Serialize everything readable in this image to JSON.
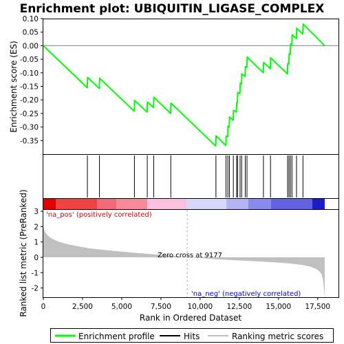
{
  "title": "Enrichment plot: UBIQUITIN_LIGASE_COMPLEX",
  "colors": {
    "profile": "#00ff00",
    "hits": "#000000",
    "metric_fill": "#c0c0c0",
    "pos_label": "#cc0000",
    "neg_label": "#0000cc",
    "zero_line": "#808080"
  },
  "legend": {
    "profile": "Enrichment profile",
    "hits": "Hits",
    "metric": "Ranking metric scores"
  },
  "annotations": {
    "pos": "'na_pos' (positively correlated)",
    "neg": "'na_neg' (negatively correlated)",
    "zero_cross": "Zero cross at 9177"
  },
  "chart_data": [
    {
      "type": "line",
      "name": "enrichment-profile",
      "ylabel": "Enrichment score (ES)",
      "ylim": [
        -0.4,
        0.1
      ],
      "yticks": [
        0.1,
        0.05,
        0.0,
        -0.05,
        -0.1,
        -0.15,
        -0.2,
        -0.25,
        -0.3,
        -0.35
      ],
      "ytick_labels": [
        "0.10",
        "0.05",
        "0.00",
        "-0.05",
        "-0.10",
        "-0.15",
        "-0.20",
        "-0.25",
        "-0.30",
        "-0.35"
      ],
      "xlim": [
        0,
        18000
      ],
      "grid": false,
      "x": [
        0,
        2800,
        2820,
        3570,
        3590,
        5800,
        5820,
        6620,
        6640,
        7030,
        7050,
        8120,
        8140,
        11000,
        11020,
        11640,
        11660,
        11760,
        11780,
        11860,
        11880,
        12110,
        12130,
        12320,
        12340,
        12380,
        12400,
        12540,
        12560,
        12640,
        12660,
        12870,
        12890,
        12980,
        13000,
        14030,
        14050,
        14480,
        14500,
        15570,
        15590,
        15660,
        15680,
        15750,
        15770,
        15850,
        15870,
        16140,
        16160,
        16550,
        16570,
        17950
      ],
      "y": [
        0.0,
        -0.155,
        -0.117,
        -0.158,
        -0.12,
        -0.242,
        -0.202,
        -0.245,
        -0.208,
        -0.228,
        -0.19,
        -0.25,
        -0.212,
        -0.37,
        -0.333,
        -0.368,
        -0.333,
        -0.336,
        -0.297,
        -0.301,
        -0.263,
        -0.275,
        -0.238,
        -0.245,
        -0.208,
        -0.21,
        -0.172,
        -0.177,
        -0.139,
        -0.142,
        -0.104,
        -0.113,
        -0.077,
        -0.08,
        -0.042,
        -0.1,
        -0.062,
        -0.085,
        -0.045,
        -0.104,
        -0.066,
        -0.068,
        -0.03,
        -0.032,
        0.006,
        0.002,
        0.04,
        0.027,
        0.064,
        0.043,
        0.08,
        0.0
      ]
    },
    {
      "type": "scatter",
      "name": "hits",
      "x": [
        2810,
        3580,
        5810,
        6630,
        7040,
        8130,
        11010,
        11650,
        11770,
        11870,
        12120,
        12330,
        12390,
        12550,
        12650,
        12880,
        12990,
        14040,
        14490,
        15580,
        15670,
        15760,
        15860,
        16150,
        16560
      ]
    },
    {
      "type": "area",
      "name": "ranking-metric",
      "xlabel": "Rank in Ordered Dataset",
      "ylabel": "Ranked list metric (PreRanked)",
      "ylim": [
        -2.7,
        3.0
      ],
      "yticks": [
        3,
        2,
        1,
        0,
        -1,
        -2
      ],
      "xlim": [
        0,
        18000
      ],
      "xticks": [
        0,
        2500,
        5000,
        7500,
        10000,
        12500,
        15000,
        17500
      ],
      "xtick_labels": [
        "0",
        "2,500",
        "5,000",
        "7,500",
        "10,000",
        "12,500",
        "15,000",
        "17,500"
      ],
      "zero_cross": 9177,
      "x": [
        0,
        50,
        150,
        300,
        500,
        800,
        1200,
        1700,
        2300,
        3000,
        4000,
        5000,
        6000,
        7000,
        8000,
        9177,
        10000,
        11000,
        12000,
        13000,
        14000,
        15000,
        15800,
        16500,
        17000,
        17400,
        17600,
        17750,
        17850,
        17950
      ],
      "y": [
        2.0,
        1.8,
        1.6,
        1.4,
        1.25,
        1.1,
        0.95,
        0.82,
        0.7,
        0.58,
        0.47,
        0.37,
        0.28,
        0.2,
        0.12,
        0.0,
        -0.06,
        -0.12,
        -0.18,
        -0.23,
        -0.28,
        -0.34,
        -0.41,
        -0.5,
        -0.6,
        -0.75,
        -0.9,
        -1.1,
        -1.5,
        -2.6
      ]
    }
  ]
}
